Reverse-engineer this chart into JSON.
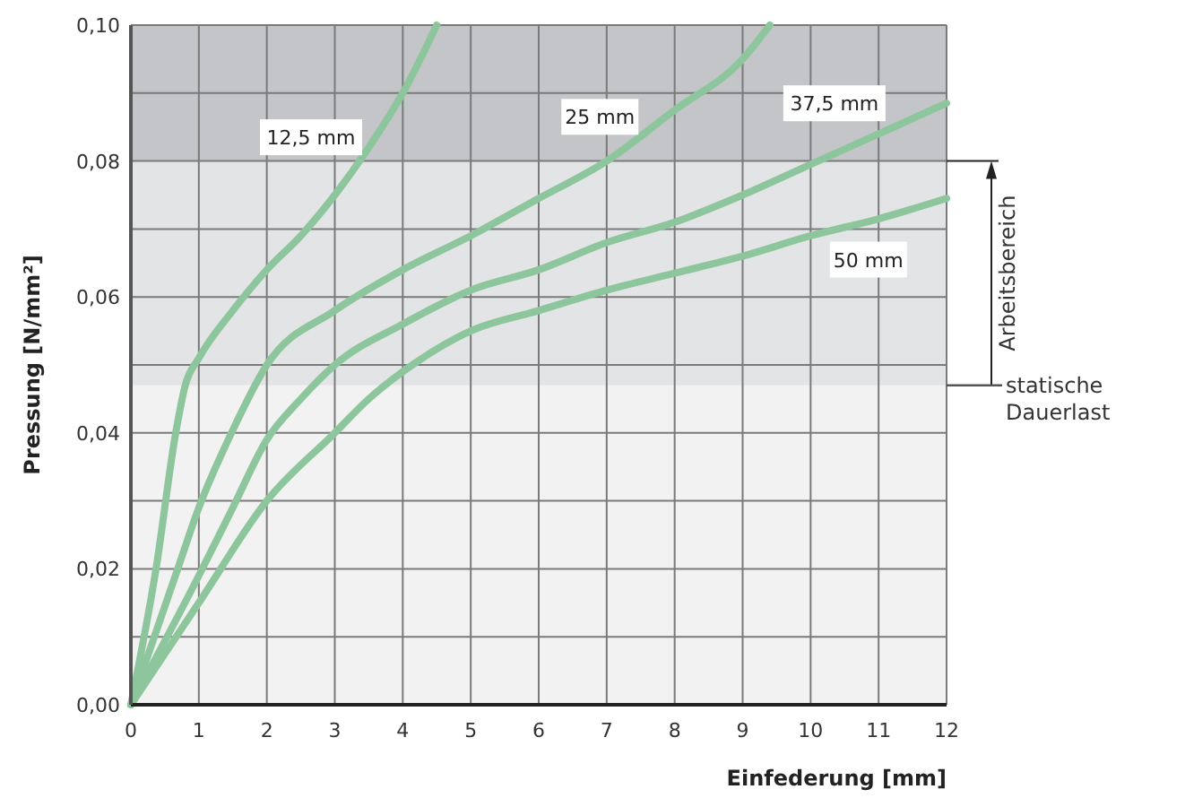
{
  "chart_data": {
    "type": "line",
    "xlabel": "Einfederung [mm]",
    "ylabel": "Pressung [N/mm²]",
    "xlim": [
      0,
      12
    ],
    "xticks": [
      0,
      1,
      2,
      3,
      4,
      5,
      6,
      7,
      8,
      9,
      10,
      11,
      12
    ],
    "ylim": [
      0,
      0.1
    ],
    "yticks": [
      {
        "value": 0,
        "label": "0,00"
      },
      {
        "value": 0.01,
        "label": null
      },
      {
        "value": 0.02,
        "label": "0,02"
      },
      {
        "value": 0.03,
        "label": null
      },
      {
        "value": 0.04,
        "label": "0,04"
      },
      {
        "value": 0.05,
        "label": null
      },
      {
        "value": 0.06,
        "label": "0,06"
      },
      {
        "value": 0.07,
        "label": null
      },
      {
        "value": 0.08,
        "label": "0,08"
      },
      {
        "value": 0.09,
        "label": null
      },
      {
        "value": 0.1,
        "label": "0,10"
      }
    ],
    "grid": true,
    "marker": "none",
    "line_style": "solid",
    "bands": [
      {
        "axis": "y",
        "from": 0,
        "to": 0.047,
        "color": "#f2f2f2"
      },
      {
        "axis": "y",
        "from": 0.047,
        "to": 0.08,
        "label": "Arbeitsbereich",
        "color": "#e3e4e6"
      },
      {
        "axis": "y",
        "from": 0.08,
        "to": 0.1,
        "color": "#c4c5c8"
      }
    ],
    "ref_lines": [
      {
        "axis": "y",
        "value": 0.047,
        "label": "statische Dauerlast",
        "color": "#555555"
      }
    ],
    "series": [
      {
        "name": "12,5 mm",
        "color": "#8dc69c",
        "x": [
          0,
          0.37,
          0.66,
          0.8,
          1,
          1.5,
          2,
          2.5,
          3,
          3.5,
          4,
          4.5
        ],
        "values": [
          0,
          0.02,
          0.04,
          0.047,
          0.051,
          0.058,
          0.064,
          0.069,
          0.075,
          0.082,
          0.09,
          0.1
        ]
      },
      {
        "name": "25 mm",
        "color": "#8dc69c",
        "x": [
          0,
          0.69,
          1,
          1.48,
          2,
          3,
          4,
          5,
          6,
          7,
          8,
          9,
          9.4
        ],
        "values": [
          0,
          0.02,
          0.029,
          0.04,
          0.05,
          0.058,
          0.064,
          0.069,
          0.0745,
          0.08,
          0.0875,
          0.095,
          0.1
        ]
      },
      {
        "name": "37,5 mm",
        "color": "#8dc69c",
        "x": [
          0,
          1,
          1.5,
          2,
          2.5,
          3,
          4,
          5,
          6,
          7,
          8,
          9,
          10,
          11,
          12
        ],
        "values": [
          0,
          0.019,
          0.029,
          0.039,
          0.045,
          0.05,
          0.056,
          0.061,
          0.064,
          0.068,
          0.071,
          0.075,
          0.0795,
          0.084,
          0.0885
        ]
      },
      {
        "name": "50 mm",
        "color": "#8dc69c",
        "x": [
          0,
          1,
          2,
          3,
          3.5,
          4,
          5,
          6,
          7,
          8,
          9,
          10,
          11,
          12
        ],
        "values": [
          0,
          0.015,
          0.03,
          0.04,
          0.045,
          0.049,
          0.055,
          0.058,
          0.061,
          0.0635,
          0.066,
          0.069,
          0.0715,
          0.0745
        ]
      }
    ]
  }
}
